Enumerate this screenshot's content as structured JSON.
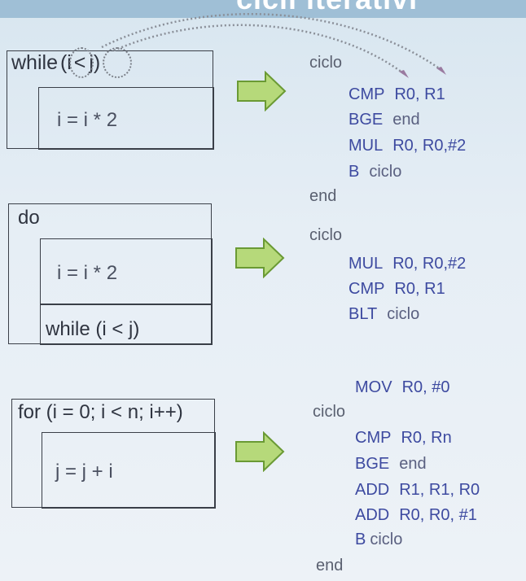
{
  "title": "cicli iterativi",
  "colors": {
    "code_blue": "#3d4aa0",
    "arrow_fill": "#b6d97a",
    "arrow_stroke": "#6a9a34",
    "box_stroke": "#3a3f48"
  },
  "blocks": [
    {
      "header": "while (i < j)",
      "header_parts": [
        "while",
        "(",
        "i",
        "<",
        "j",
        ")"
      ],
      "body": "i = i * 2",
      "code": {
        "label_start": "ciclo",
        "lines": [
          {
            "op": "CMP",
            "arg": "R0, R1"
          },
          {
            "op": "BGE",
            "arg": "end"
          },
          {
            "op": "MUL",
            "arg": "R0, R0,#2"
          },
          {
            "op": "B",
            "arg": "ciclo"
          }
        ],
        "label_end": "end"
      }
    },
    {
      "header": "do",
      "body": "i = i * 2",
      "footer": "while (i < j)",
      "code": {
        "label_start": "ciclo",
        "lines": [
          {
            "op": "MUL",
            "arg": "R0, R0,#2"
          },
          {
            "op": "CMP",
            "arg": "R0, R1"
          },
          {
            "op": "BLT",
            "arg": "ciclo"
          }
        ]
      }
    },
    {
      "header": "for (i = 0; i < n; i++)",
      "body": "j = j + i",
      "code": {
        "pre_line": {
          "op": "MOV",
          "arg": "R0, #0"
        },
        "label_start": "ciclo",
        "lines": [
          {
            "op": "CMP",
            "arg": "R0, Rn"
          },
          {
            "op": "BGE",
            "arg": "end"
          },
          {
            "op": "ADD",
            "arg": "R1, R1, R0"
          },
          {
            "op": "ADD",
            "arg": "R0, R0, #1"
          },
          {
            "op": "B",
            "arg": "ciclo"
          }
        ],
        "label_end": "end"
      }
    }
  ],
  "arrow_icon": "right-arrow-icon"
}
